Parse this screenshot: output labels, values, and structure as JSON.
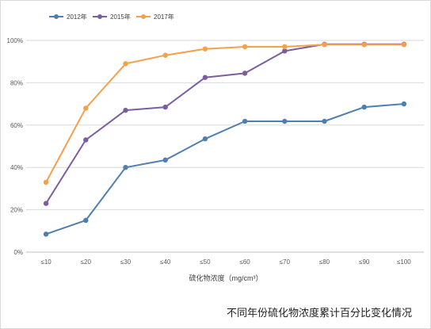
{
  "chart_data": {
    "type": "line",
    "categories": [
      "≤10",
      "≤20",
      "≤30",
      "≤40",
      "≤50",
      "≤60",
      "≤70",
      "≤80",
      "≤90",
      "≤100"
    ],
    "series": [
      {
        "name": "2012年",
        "color": "#4e7fb0",
        "values": [
          8.5,
          15,
          40,
          43.5,
          53.5,
          61.8,
          61.8,
          61.8,
          68.5,
          70
        ]
      },
      {
        "name": "2015年",
        "color": "#7b5ea0",
        "values": [
          23,
          53,
          67,
          68.5,
          82.5,
          84.5,
          95,
          98.2,
          98.2,
          98.2
        ]
      },
      {
        "name": "2017年",
        "color": "#f4a04d",
        "values": [
          33,
          68,
          89,
          93,
          96,
          97,
          97,
          98,
          98,
          98
        ]
      }
    ],
    "yticks": [
      "0%",
      "20%",
      "40%",
      "60%",
      "80%",
      "100%"
    ],
    "ylim": [
      0,
      100
    ],
    "xlabel": "硫化物浓度（mg/cm³）",
    "ylabel": "",
    "grid": true,
    "legend": "top-left"
  },
  "caption": "不同年份硫化物浓度累计百分比变化情况"
}
